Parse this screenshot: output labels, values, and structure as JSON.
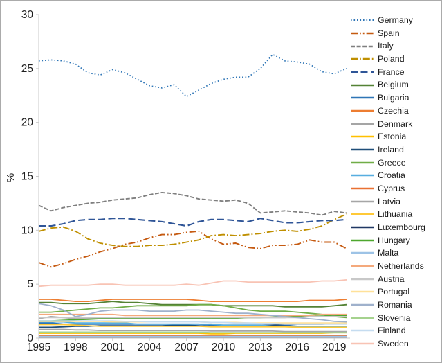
{
  "figure": {
    "background": "#ffffff",
    "border_color": "#ababab"
  },
  "chart_data": {
    "type": "line",
    "title": "",
    "xlabel": "",
    "ylabel": "%",
    "grid": false,
    "legend_position": "right",
    "ylim": [
      0,
      30
    ],
    "y_ticks": [
      0,
      5,
      10,
      15,
      20,
      25,
      30
    ],
    "x": [
      1995,
      1996,
      1997,
      1998,
      1999,
      2000,
      2001,
      2002,
      2003,
      2004,
      2005,
      2006,
      2007,
      2008,
      2009,
      2010,
      2011,
      2012,
      2013,
      2014,
      2015,
      2016,
      2017,
      2018,
      2019,
      2020
    ],
    "x_tick_years": [
      1995,
      1998,
      2001,
      2004,
      2007,
      2010,
      2013,
      2016,
      2019
    ],
    "axis_color": "#c9c9c9",
    "tick_label_color": "#1f1f1f",
    "series": [
      {
        "name": "Germany",
        "color": "#2E75B6",
        "dash": "dot",
        "width": 1.7,
        "values": [
          25.7,
          25.8,
          25.7,
          25.4,
          24.6,
          24.4,
          24.9,
          24.6,
          24.0,
          23.4,
          23.2,
          23.5,
          22.4,
          23.0,
          23.6,
          24.0,
          24.2,
          24.2,
          25.0,
          26.3,
          25.7,
          25.6,
          25.4,
          24.7,
          24.5,
          25.0
        ]
      },
      {
        "name": "Spain",
        "color": "#C55A11",
        "dash": "dash-dot-dot",
        "width": 1.9,
        "values": [
          7.0,
          6.6,
          6.9,
          7.3,
          7.6,
          8.0,
          8.3,
          8.7,
          8.9,
          9.3,
          9.6,
          9.6,
          9.8,
          9.9,
          9.2,
          8.7,
          8.8,
          8.4,
          8.3,
          8.6,
          8.6,
          8.7,
          9.1,
          8.9,
          8.9,
          8.3
        ]
      },
      {
        "name": "Italy",
        "color": "#7F7F7F",
        "dash": "dash",
        "width": 1.9,
        "values": [
          12.3,
          11.8,
          12.1,
          12.3,
          12.5,
          12.6,
          12.8,
          12.9,
          13.0,
          13.3,
          13.5,
          13.4,
          13.2,
          12.9,
          12.8,
          12.7,
          12.8,
          12.5,
          11.6,
          11.7,
          11.8,
          11.7,
          11.6,
          11.4,
          11.75,
          11.6
        ]
      },
      {
        "name": "Poland",
        "color": "#BF8F00",
        "dash": "dash-dot",
        "width": 1.9,
        "values": [
          9.9,
          10.2,
          10.3,
          9.9,
          9.2,
          8.8,
          8.6,
          8.5,
          8.5,
          8.6,
          8.6,
          8.7,
          8.9,
          9.1,
          9.5,
          9.6,
          9.5,
          9.6,
          9.7,
          9.9,
          10.0,
          9.9,
          10.1,
          10.4,
          11.0,
          11.5
        ]
      },
      {
        "name": "France",
        "color": "#2F5597",
        "dash": "long-dash",
        "width": 2.1,
        "values": [
          10.4,
          10.4,
          10.6,
          10.9,
          11.0,
          11.0,
          11.1,
          11.1,
          11.0,
          10.9,
          10.8,
          10.6,
          10.4,
          10.8,
          11.0,
          11.0,
          10.9,
          10.8,
          11.1,
          10.9,
          10.7,
          10.7,
          10.8,
          10.9,
          10.9,
          11.0
        ]
      },
      {
        "name": "Belgium",
        "color": "#548235",
        "dash": "solid",
        "width": 1.8,
        "values": [
          3.3,
          3.3,
          3.2,
          3.2,
          3.2,
          3.3,
          3.4,
          3.3,
          3.3,
          3.2,
          3.1,
          3.1,
          3.1,
          3.1,
          3.1,
          3.0,
          3.0,
          3.0,
          3.0,
          3.0,
          2.9,
          2.9,
          2.9,
          2.9,
          3.0,
          3.1
        ]
      },
      {
        "name": "Bulgaria",
        "color": "#2E75B6",
        "dash": "solid",
        "width": 1.8,
        "values": [
          1.4,
          1.4,
          1.3,
          1.3,
          1.3,
          1.3,
          1.3,
          1.3,
          1.3,
          1.3,
          1.3,
          1.3,
          1.3,
          1.3,
          1.2,
          1.2,
          1.2,
          1.2,
          1.2,
          1.2,
          1.2,
          1.1,
          1.1,
          1.1,
          1.1,
          1.1
        ]
      },
      {
        "name": "Czechia",
        "color": "#ED7D31",
        "dash": "solid",
        "width": 1.8,
        "values": [
          3.6,
          3.6,
          3.5,
          3.4,
          3.4,
          3.5,
          3.6,
          3.6,
          3.6,
          3.6,
          3.6,
          3.6,
          3.6,
          3.5,
          3.4,
          3.4,
          3.4,
          3.4,
          3.4,
          3.4,
          3.4,
          3.4,
          3.5,
          3.5,
          3.5,
          3.6
        ]
      },
      {
        "name": "Denmark",
        "color": "#A5A5A5",
        "dash": "solid",
        "width": 1.8,
        "values": [
          1.8,
          2.0,
          1.9,
          1.8,
          1.8,
          1.8,
          1.8,
          1.8,
          1.8,
          1.8,
          1.9,
          1.9,
          1.9,
          1.9,
          1.8,
          1.9,
          1.9,
          1.9,
          1.9,
          1.9,
          1.9,
          2.0,
          2.0,
          2.0,
          2.1,
          2.1
        ]
      },
      {
        "name": "Estonia",
        "color": "#FFC000",
        "dash": "solid",
        "width": 1.8,
        "values": [
          0.45,
          0.45,
          0.45,
          0.45,
          0.45,
          0.45,
          0.45,
          0.45,
          0.45,
          0.45,
          0.45,
          0.45,
          0.45,
          0.45,
          0.4,
          0.4,
          0.45,
          0.45,
          0.45,
          0.45,
          0.45,
          0.45,
          0.45,
          0.45,
          0.5,
          0.5
        ]
      },
      {
        "name": "Ireland",
        "color": "#1F4E79",
        "dash": "solid",
        "width": 1.8,
        "values": [
          1.0,
          1.0,
          1.05,
          1.1,
          1.1,
          1.15,
          1.15,
          1.15,
          1.15,
          1.15,
          1.15,
          1.2,
          1.2,
          1.15,
          1.1,
          1.1,
          1.1,
          1.1,
          1.15,
          1.2,
          1.25,
          1.3,
          1.3,
          1.3,
          1.35,
          1.35
        ]
      },
      {
        "name": "Greece",
        "color": "#70AD47",
        "dash": "solid",
        "width": 1.8,
        "values": [
          2.4,
          2.4,
          2.5,
          2.6,
          2.7,
          2.8,
          2.8,
          2.9,
          3.0,
          3.0,
          3.0,
          3.0,
          3.0,
          3.1,
          3.1,
          3.0,
          2.8,
          2.6,
          2.5,
          2.5,
          2.5,
          2.4,
          2.3,
          2.2,
          2.0,
          1.9
        ]
      },
      {
        "name": "Croatia",
        "color": "#57AEE0",
        "dash": "solid",
        "width": 1.8,
        "values": [
          1.5,
          1.5,
          1.5,
          1.4,
          1.4,
          1.4,
          1.4,
          1.4,
          1.3,
          1.3,
          1.3,
          1.3,
          1.3,
          1.3,
          1.3,
          1.2,
          1.2,
          1.2,
          1.2,
          1.1,
          1.1,
          1.1,
          1.1,
          1.1,
          1.1,
          1.1
        ]
      },
      {
        "name": "Cyprus",
        "color": "#E97132",
        "dash": "solid",
        "width": 1.8,
        "values": [
          0.25,
          0.25,
          0.25,
          0.25,
          0.25,
          0.25,
          0.25,
          0.25,
          0.25,
          0.25,
          0.25,
          0.25,
          0.25,
          0.25,
          0.25,
          0.25,
          0.25,
          0.25,
          0.25,
          0.25,
          0.25,
          0.25,
          0.25,
          0.25,
          0.25,
          0.25
        ]
      },
      {
        "name": "Latvia",
        "color": "#A6A6A6",
        "dash": "solid",
        "width": 1.8,
        "values": [
          0.8,
          0.8,
          0.8,
          0.75,
          0.75,
          0.7,
          0.7,
          0.7,
          0.7,
          0.7,
          0.7,
          0.7,
          0.7,
          0.7,
          0.65,
          0.65,
          0.65,
          0.65,
          0.65,
          0.65,
          0.6,
          0.6,
          0.6,
          0.6,
          0.6,
          0.6
        ]
      },
      {
        "name": "Lithuania",
        "color": "#FFC937",
        "dash": "solid",
        "width": 1.8,
        "values": [
          1.25,
          1.25,
          1.25,
          1.2,
          1.15,
          1.1,
          1.1,
          1.1,
          1.1,
          1.1,
          1.1,
          1.1,
          1.1,
          1.1,
          1.05,
          1.05,
          1.05,
          1.05,
          1.05,
          1.05,
          1.05,
          1.0,
          1.0,
          1.0,
          1.0,
          1.0
        ]
      },
      {
        "name": "Luxembourg",
        "color": "#203864",
        "dash": "solid",
        "width": 1.8,
        "values": [
          0.1,
          0.1,
          0.1,
          0.1,
          0.1,
          0.1,
          0.1,
          0.1,
          0.1,
          0.1,
          0.1,
          0.1,
          0.1,
          0.1,
          0.1,
          0.1,
          0.1,
          0.1,
          0.1,
          0.1,
          0.1,
          0.1,
          0.1,
          0.1,
          0.1,
          0.1
        ]
      },
      {
        "name": "Hungary",
        "color": "#4EA72E",
        "dash": "solid",
        "width": 1.8,
        "values": [
          1.6,
          1.6,
          1.65,
          1.7,
          1.75,
          1.8,
          1.8,
          1.8,
          1.8,
          1.8,
          1.85,
          1.85,
          1.85,
          1.85,
          1.8,
          1.85,
          1.85,
          1.9,
          1.9,
          1.95,
          2.0,
          2.0,
          2.0,
          2.05,
          2.05,
          2.1
        ]
      },
      {
        "name": "Malta",
        "color": "#9DC3E6",
        "dash": "solid",
        "width": 1.8,
        "values": [
          0.15,
          0.15,
          0.15,
          0.15,
          0.15,
          0.15,
          0.15,
          0.15,
          0.15,
          0.15,
          0.15,
          0.15,
          0.15,
          0.15,
          0.15,
          0.15,
          0.15,
          0.15,
          0.15,
          0.15,
          0.15,
          0.15,
          0.15,
          0.15,
          0.15,
          0.15
        ]
      },
      {
        "name": "Netherlands",
        "color": "#F4A97C",
        "dash": "solid",
        "width": 1.8,
        "values": [
          2.2,
          2.2,
          2.2,
          2.2,
          2.2,
          2.2,
          2.2,
          2.1,
          2.1,
          2.1,
          2.1,
          2.1,
          2.1,
          2.1,
          2.1,
          2.1,
          2.1,
          2.1,
          2.1,
          2.1,
          2.1,
          2.1,
          2.1,
          2.2,
          2.2,
          2.2
        ]
      },
      {
        "name": "Austria",
        "color": "#C8C8C8",
        "dash": "solid",
        "width": 1.8,
        "values": [
          1.9,
          1.9,
          1.9,
          1.9,
          1.9,
          1.9,
          1.9,
          1.9,
          1.9,
          1.9,
          1.9,
          1.9,
          1.9,
          1.9,
          1.9,
          1.9,
          1.9,
          1.9,
          1.9,
          1.9,
          1.9,
          1.9,
          2.0,
          2.0,
          2.0,
          2.0
        ]
      },
      {
        "name": "Portugal",
        "color": "#FFE199",
        "dash": "solid",
        "width": 1.8,
        "values": [
          1.55,
          1.55,
          1.55,
          1.55,
          1.55,
          1.55,
          1.5,
          1.5,
          1.5,
          1.5,
          1.5,
          1.5,
          1.5,
          1.5,
          1.45,
          1.45,
          1.45,
          1.4,
          1.4,
          1.4,
          1.4,
          1.4,
          1.4,
          1.4,
          1.4,
          1.4
        ]
      },
      {
        "name": "Romania",
        "color": "#9FB1CC",
        "dash": "solid",
        "width": 1.8,
        "values": [
          3.2,
          3.0,
          2.6,
          2.0,
          2.2,
          2.5,
          2.6,
          2.6,
          2.6,
          2.5,
          2.5,
          2.5,
          2.6,
          2.6,
          2.5,
          2.4,
          2.3,
          2.3,
          2.2,
          2.1,
          2.0,
          1.9,
          1.8,
          1.7,
          1.55,
          1.5
        ]
      },
      {
        "name": "Slovenia",
        "color": "#A5D28E",
        "dash": "solid",
        "width": 1.8,
        "values": [
          0.55,
          0.55,
          0.55,
          0.55,
          0.55,
          0.55,
          0.55,
          0.55,
          0.55,
          0.55,
          0.55,
          0.55,
          0.55,
          0.55,
          0.5,
          0.5,
          0.5,
          0.5,
          0.5,
          0.5,
          0.5,
          0.5,
          0.5,
          0.5,
          0.5,
          0.5
        ]
      },
      {
        "name": "Finland",
        "color": "#C5DCF0",
        "dash": "solid",
        "width": 1.8,
        "values": [
          1.6,
          1.6,
          1.6,
          1.6,
          1.6,
          1.6,
          1.6,
          1.55,
          1.55,
          1.5,
          1.5,
          1.5,
          1.5,
          1.5,
          1.45,
          1.45,
          1.4,
          1.4,
          1.35,
          1.35,
          1.3,
          1.3,
          1.3,
          1.3,
          1.3,
          1.3
        ]
      },
      {
        "name": "Sweden",
        "color": "#F8C3B4",
        "dash": "solid",
        "width": 1.8,
        "values": [
          4.8,
          4.9,
          4.9,
          4.9,
          4.9,
          5.0,
          5.0,
          4.9,
          4.9,
          4.9,
          4.9,
          4.9,
          5.0,
          4.9,
          5.1,
          5.3,
          5.3,
          5.2,
          5.2,
          5.2,
          5.2,
          5.2,
          5.2,
          5.3,
          5.3,
          5.4
        ]
      }
    ]
  }
}
